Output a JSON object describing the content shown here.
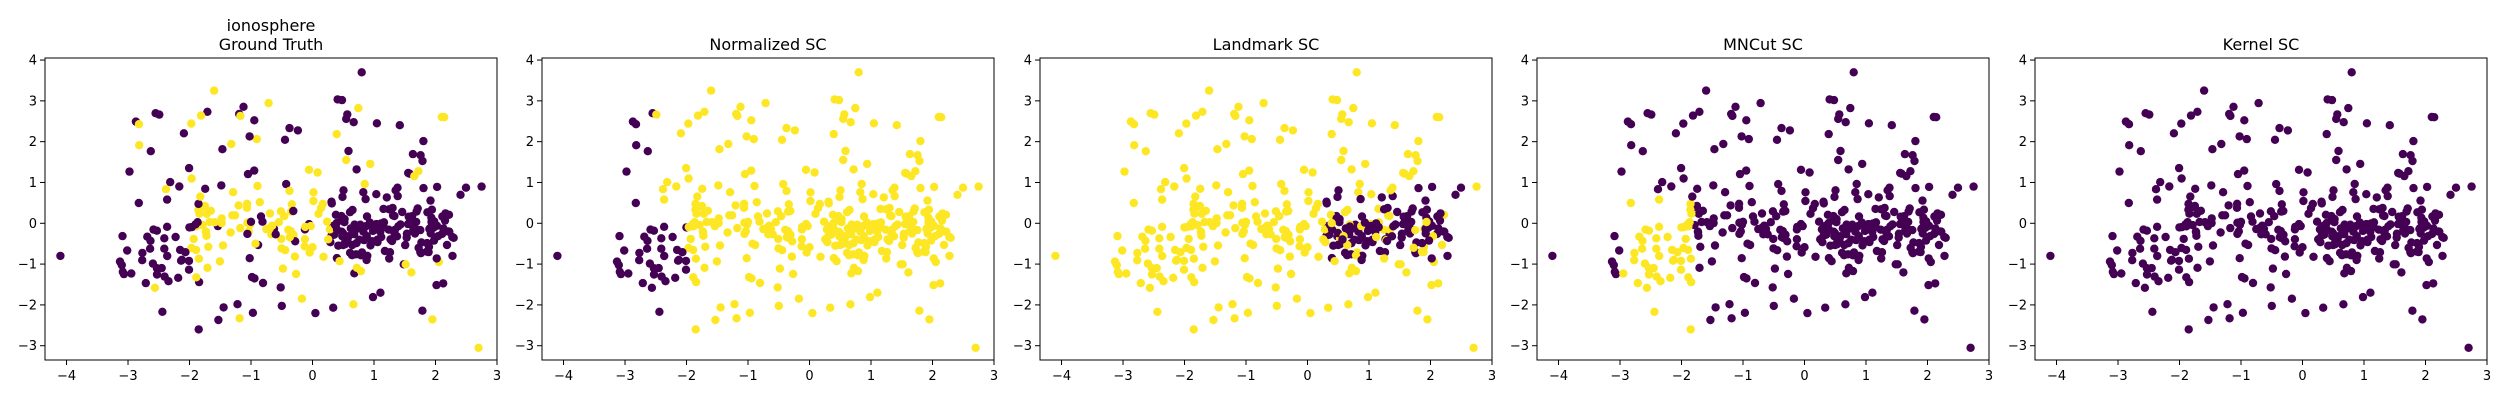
{
  "chart_data": [
    {
      "type": "scatter",
      "title": [
        "ionosphere",
        "Ground Truth"
      ],
      "xlim": [
        -4.35,
        3.0
      ],
      "ylim": [
        -3.35,
        4.05
      ],
      "xticks": [
        -4,
        -3,
        -2,
        -1,
        0,
        1,
        2,
        3
      ],
      "yticks": [
        -3,
        -2,
        -1,
        0,
        1,
        2,
        3,
        4
      ],
      "grid": false,
      "colors": {
        "class_0": "#440154",
        "class_1": "#fde725"
      },
      "labeling": "ground_truth"
    },
    {
      "type": "scatter",
      "title": [
        "Normalized SC"
      ],
      "xlim": [
        -4.35,
        3.0
      ],
      "ylim": [
        -3.35,
        4.05
      ],
      "xticks": [
        -4,
        -3,
        -2,
        -1,
        0,
        1,
        2,
        3
      ],
      "yticks": [
        -3,
        -2,
        -1,
        0,
        1,
        2,
        3,
        4
      ],
      "grid": false,
      "colors": {
        "class_0": "#440154",
        "class_1": "#fde725"
      },
      "labeling": "normalized"
    },
    {
      "type": "scatter",
      "title": [
        "Landmark SC"
      ],
      "xlim": [
        -4.35,
        3.0
      ],
      "ylim": [
        -3.35,
        4.05
      ],
      "xticks": [
        -4,
        -3,
        -2,
        -1,
        0,
        1,
        2,
        3
      ],
      "yticks": [
        -3,
        -2,
        -1,
        0,
        1,
        2,
        3,
        4
      ],
      "grid": false,
      "colors": {
        "class_0": "#440154",
        "class_1": "#fde725"
      },
      "labeling": "landmark"
    },
    {
      "type": "scatter",
      "title": [
        "MNCut SC"
      ],
      "xlim": [
        -4.35,
        3.0
      ],
      "ylim": [
        -3.35,
        4.05
      ],
      "xticks": [
        -4,
        -3,
        -2,
        -1,
        0,
        1,
        2,
        3
      ],
      "yticks": [
        -3,
        -2,
        -1,
        0,
        1,
        2,
        3,
        4
      ],
      "grid": false,
      "colors": {
        "class_0": "#440154",
        "class_1": "#fde725"
      },
      "labeling": "mncut"
    },
    {
      "type": "scatter",
      "title": [
        "Kernel SC"
      ],
      "xlim": [
        -4.35,
        3.0
      ],
      "ylim": [
        -3.35,
        4.05
      ],
      "xticks": [
        -4,
        -3,
        -2,
        -1,
        0,
        1,
        2,
        3
      ],
      "yticks": [
        -3,
        -2,
        -1,
        0,
        1,
        2,
        3,
        4
      ],
      "grid": false,
      "colors": {
        "class_0": "#440154",
        "class_1": "#fde725"
      },
      "labeling": "kernel"
    }
  ],
  "points": {
    "ground_truth_class_1_indices_note": "",
    "x": [
      -4.1,
      -3.3,
      -3.2,
      -3.1,
      -3.0,
      -2.9,
      -2.85,
      -2.8,
      -2.75,
      -2.7,
      -2.6,
      -2.55,
      -2.5,
      -2.45,
      -2.4,
      -2.3,
      -2.25,
      -2.2,
      -2.15,
      -2.1,
      -2.05,
      -2.0,
      -1.95,
      -1.9,
      -1.85,
      -1.8,
      -1.75,
      -1.7,
      -1.65,
      -1.6,
      -1.55,
      -1.5,
      -1.45,
      -1.4,
      -1.35,
      -1.3,
      -1.25,
      -1.2,
      -1.15,
      -1.1,
      -1.05,
      -1.0,
      -0.95,
      -0.9,
      -0.85,
      -0.8,
      -0.75,
      -0.7,
      -0.65,
      -0.6,
      -0.55,
      -0.5,
      -0.45,
      -0.4,
      -0.35,
      -0.3,
      -0.25,
      -0.2,
      -0.15,
      -0.1,
      -0.05,
      0.0,
      0.05,
      0.1,
      0.15,
      0.2,
      0.25,
      0.3,
      0.35,
      0.4,
      0.45,
      0.5,
      0.55,
      0.6,
      0.65,
      0.7,
      0.75,
      0.8,
      0.85,
      0.9,
      0.95,
      1.0,
      1.05,
      1.1,
      1.15,
      1.2,
      1.25,
      1.3,
      1.35,
      1.4,
      1.45,
      1.5,
      1.55,
      1.6,
      1.65,
      1.7,
      1.75,
      1.8,
      1.85,
      1.9,
      1.95,
      2.0,
      2.05,
      2.1,
      2.15,
      2.2,
      2.25,
      2.3,
      2.65,
      2.7,
      -3.0,
      -2.7,
      -2.5,
      -2.2,
      -1.9,
      -1.7,
      -1.5,
      -1.3,
      -1.1,
      -0.9,
      -0.7,
      -0.5,
      -0.3,
      -0.1,
      0.1,
      0.3,
      0.5,
      0.7,
      0.9,
      1.1,
      1.3,
      1.5,
      1.7,
      1.9,
      2.1,
      -2.6,
      -2.4,
      -2.2,
      -1.8,
      -1.6,
      -1.4,
      -1.2,
      -1.0,
      -0.8,
      -0.6,
      -0.4,
      -0.2,
      0.2,
      0.4,
      0.6,
      0.8,
      1.0,
      1.2,
      1.4,
      1.6,
      1.8,
      2.0,
      2.2,
      -3.1,
      -2.9,
      -2.3,
      -2.1,
      -1.5,
      -1.3,
      -0.9,
      -0.7,
      -0.3,
      0.0,
      0.35,
      0.75,
      0.95,
      1.25,
      1.55,
      1.75,
      1.95,
      2.15,
      -2.75,
      -2.35,
      -1.95,
      -1.55,
      -1.15,
      -0.75,
      -0.35,
      0.05,
      0.45,
      0.85,
      1.25,
      1.65,
      2.05,
      2.25,
      -3.05,
      -2.65,
      -2.25,
      -1.85,
      -1.45,
      -1.05,
      -0.65,
      -0.25,
      0.15,
      0.55,
      0.95,
      1.35,
      1.75,
      2.15,
      1.6,
      1.8,
      2.0,
      2.2,
      1.7,
      1.9,
      2.1,
      1.5,
      1.4,
      1.3,
      1.2,
      1.1,
      1.0,
      0.9,
      0.8,
      0.7,
      0.6,
      0.5,
      0.4,
      0.3,
      0.2,
      1.65,
      1.85,
      2.05,
      1.75,
      1.95,
      2.15,
      1.55,
      2.25,
      2.0,
      1.9,
      1.8,
      2.1
    ]
  }
}
